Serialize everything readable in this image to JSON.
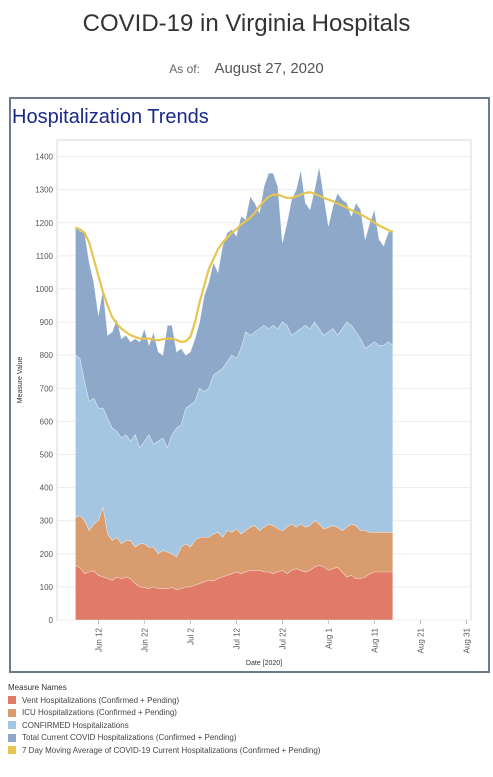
{
  "header": {
    "title": "COVID-19 in Virginia Hospitals",
    "as_of_label": "As of:",
    "as_of_date": "August 27, 2020"
  },
  "panel": {
    "title": "Hospitalization Trends"
  },
  "legend": {
    "title": "Measure Names",
    "items": [
      {
        "label": "Vent Hospitalizations (Confirmed + Pending)",
        "color": "#e07b67"
      },
      {
        "label": "ICU Hospitalizations (Confirmed + Pending)",
        "color": "#d89c6e"
      },
      {
        "label": "CONFIRMED Hospitalizations",
        "color": "#a4c6e2"
      },
      {
        "label": "Total Current COVID Hospitalizations (Confirmed + Pending)",
        "color": "#8ea8c9"
      },
      {
        "label": "7 Day Moving Average of COVID-19 Current Hospitalizations (Confirmed + Pending)",
        "color": "#e6c550"
      }
    ]
  },
  "chart_data": {
    "type": "area",
    "xlabel": "Date [2020]",
    "ylabel": "Measure Value",
    "ylim": [
      0,
      1450
    ],
    "y_ticks": [
      0,
      100,
      200,
      300,
      400,
      500,
      600,
      700,
      800,
      900,
      1000,
      1100,
      1200,
      1300,
      1400
    ],
    "x_ticks": [
      {
        "day": 12,
        "label": "Jun 12"
      },
      {
        "day": 22,
        "label": "Jun 22"
      },
      {
        "day": 32,
        "label": "Jul 2"
      },
      {
        "day": 42,
        "label": "Jul 12"
      },
      {
        "day": 52,
        "label": "Jul 22"
      },
      {
        "day": 62,
        "label": "Aug 1"
      },
      {
        "day": 72,
        "label": "Aug 11"
      },
      {
        "day": 82,
        "label": "Aug 21"
      },
      {
        "day": 92,
        "label": "Aug 31"
      }
    ],
    "x_range": [
      3,
      93
    ],
    "grid": true,
    "legend_position": "bottom",
    "x_start": 7,
    "series": [
      {
        "name": "Total Current COVID Hospitalizations (Confirmed + Pending)",
        "color": "#8ea8c9",
        "values": [
          1190,
          1175,
          1170,
          1080,
          1020,
          920,
          1000,
          860,
          870,
          910,
          850,
          860,
          840,
          850,
          840,
          880,
          830,
          870,
          810,
          800,
          890,
          890,
          810,
          820,
          800,
          810,
          850,
          900,
          980,
          1020,
          1080,
          1050,
          1130,
          1170,
          1180,
          1160,
          1220,
          1210,
          1280,
          1260,
          1230,
          1310,
          1350,
          1350,
          1310,
          1140,
          1200,
          1270,
          1300,
          1360,
          1260,
          1240,
          1300,
          1370,
          1280,
          1190,
          1250,
          1290,
          1270,
          1260,
          1220,
          1260,
          1240,
          1150,
          1200,
          1240,
          1150,
          1130,
          1170,
          1180
        ]
      },
      {
        "name": "CONFIRMED Hospitalizations",
        "color": "#a4c6e2",
        "values": [
          800,
          790,
          720,
          660,
          670,
          640,
          640,
          610,
          580,
          570,
          550,
          560,
          540,
          560,
          520,
          540,
          560,
          530,
          540,
          550,
          520,
          560,
          580,
          590,
          640,
          650,
          660,
          700,
          690,
          700,
          740,
          750,
          760,
          780,
          800,
          790,
          820,
          870,
          860,
          870,
          880,
          890,
          880,
          890,
          880,
          900,
          890,
          860,
          870,
          880,
          890,
          880,
          900,
          880,
          860,
          870,
          880,
          860,
          880,
          900,
          890,
          870,
          850,
          820,
          830,
          840,
          830,
          830,
          840,
          830
        ]
      },
      {
        "name": "ICU Hospitalizations (Confirmed + Pending)",
        "color": "#d89c6e",
        "values": [
          310,
          315,
          300,
          270,
          290,
          300,
          340,
          260,
          240,
          250,
          230,
          240,
          240,
          220,
          230,
          230,
          220,
          220,
          200,
          210,
          205,
          200,
          190,
          220,
          230,
          220,
          240,
          250,
          250,
          250,
          260,
          265,
          250,
          270,
          265,
          275,
          260,
          270,
          280,
          285,
          270,
          280,
          290,
          285,
          275,
          270,
          280,
          290,
          280,
          290,
          280,
          285,
          300,
          290,
          275,
          280,
          285,
          280,
          270,
          280,
          290,
          285,
          270,
          270,
          265,
          265,
          265,
          265,
          265,
          265
        ]
      },
      {
        "name": "Vent Hospitalizations (Confirmed + Pending)",
        "color": "#e07b67",
        "values": [
          165,
          158,
          140,
          145,
          148,
          135,
          130,
          125,
          120,
          130,
          125,
          130,
          125,
          110,
          100,
          98,
          95,
          100,
          95,
          95,
          95,
          98,
          92,
          95,
          100,
          100,
          105,
          110,
          115,
          120,
          118,
          125,
          130,
          135,
          140,
          145,
          140,
          145,
          150,
          150,
          150,
          145,
          145,
          140,
          145,
          150,
          140,
          150,
          155,
          150,
          145,
          150,
          160,
          165,
          160,
          150,
          155,
          160,
          145,
          130,
          135,
          125,
          125,
          130,
          140,
          145,
          145,
          145,
          145,
          145
        ]
      },
      {
        "name": "7 Day Moving Average of COVID-19 Current Hospitalizations (Confirmed + Pending)",
        "color": "#e6c550",
        "values": [
          1185,
          1180,
          1170,
          1140,
          1090,
          1040,
          990,
          950,
          915,
          895,
          880,
          870,
          860,
          855,
          850,
          850,
          850,
          848,
          845,
          848,
          850,
          850,
          846,
          840,
          842,
          855,
          900,
          960,
          1010,
          1060,
          1090,
          1120,
          1140,
          1155,
          1170,
          1180,
          1195,
          1205,
          1215,
          1230,
          1250,
          1265,
          1278,
          1285,
          1285,
          1280,
          1275,
          1275,
          1280,
          1285,
          1290,
          1292,
          1288,
          1282,
          1275,
          1270,
          1265,
          1258,
          1252,
          1245,
          1238,
          1232,
          1225,
          1218,
          1210,
          1200,
          1192,
          1185,
          1178,
          1172
        ]
      }
    ]
  }
}
